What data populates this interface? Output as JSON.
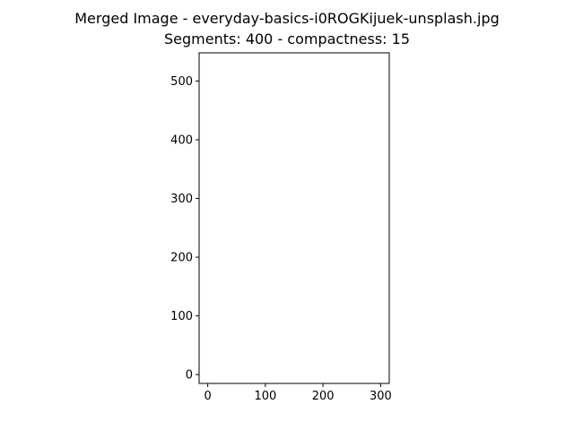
{
  "chart_data": {
    "type": "image",
    "title_line1": "Merged Image - everyday-basics-i0ROGKijuek-unsplash.jpg",
    "title_line2": "Segments: 400 - compactness: 15",
    "xlim": [
      -15,
      315
    ],
    "ylim": [
      548,
      -15
    ],
    "image_extent": {
      "width": 300,
      "height": 545
    },
    "x_ticks": [
      0,
      100,
      200,
      300
    ],
    "y_ticks": [
      0,
      100,
      200,
      300,
      400,
      500
    ],
    "grid": false,
    "legend": "none",
    "colors": {
      "background": "#d0cec9",
      "object": "#8a8a7a",
      "object_dark": "#4b4749",
      "segment_boundary": "#dcd89a",
      "flow_lines": "#6a1fa3",
      "object_contour": "#ff1a1a"
    }
  }
}
